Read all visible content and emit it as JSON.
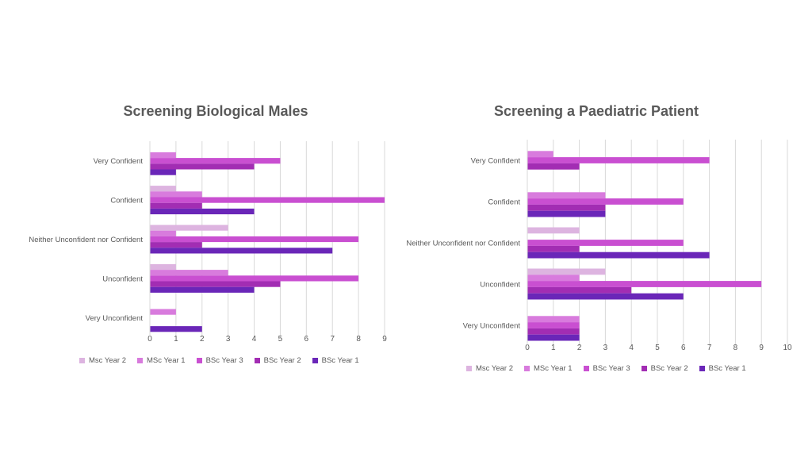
{
  "chart_data": [
    {
      "type": "bar",
      "orientation": "horizontal",
      "title": "Screening Biological Males",
      "categories": [
        "Very Confident",
        "Confident",
        "Neither Unconfident nor Confident",
        "Unconfident",
        "Very Unconfident"
      ],
      "xlim": [
        0,
        9
      ],
      "xticks": [
        0,
        1,
        2,
        3,
        4,
        5,
        6,
        7,
        8,
        9
      ],
      "grid": true,
      "legend_position": "bottom",
      "series": [
        {
          "name": "Msc Year 2",
          "color": "#DDB4E0",
          "values": [
            0,
            1,
            3,
            1,
            0
          ]
        },
        {
          "name": "MSc Year 1",
          "color": "#D87BDD",
          "values": [
            1,
            2,
            1,
            3,
            1
          ]
        },
        {
          "name": "BSc Year 3",
          "color": "#C94FD1",
          "values": [
            5,
            9,
            8,
            8,
            0
          ]
        },
        {
          "name": "BSc Year 2",
          "color": "#A22DB3",
          "values": [
            4,
            2,
            2,
            5,
            0
          ]
        },
        {
          "name": "BSc Year 1",
          "color": "#6A26B8",
          "values": [
            1,
            4,
            7,
            4,
            2
          ]
        }
      ]
    },
    {
      "type": "bar",
      "orientation": "horizontal",
      "title": "Screening a Paediatric Patient",
      "categories": [
        "Very Confident",
        "Confident",
        "Neither Unconfident nor Confident",
        "Unconfident",
        "Very Unconfident"
      ],
      "xlim": [
        0,
        10
      ],
      "xticks": [
        0,
        1,
        2,
        3,
        4,
        5,
        6,
        7,
        8,
        9,
        10
      ],
      "grid": true,
      "legend_position": "bottom",
      "series": [
        {
          "name": "Msc Year 2",
          "color": "#DDB4E0",
          "values": [
            0,
            0,
            2,
            3,
            0
          ]
        },
        {
          "name": "MSc Year 1",
          "color": "#D87BDD",
          "values": [
            1,
            3,
            0,
            2,
            2
          ]
        },
        {
          "name": "BSc Year 3",
          "color": "#C94FD1",
          "values": [
            7,
            6,
            6,
            9,
            2
          ]
        },
        {
          "name": "BSc Year 2",
          "color": "#A22DB3",
          "values": [
            2,
            3,
            2,
            4,
            2
          ]
        },
        {
          "name": "BSc Year 1",
          "color": "#6A26B8",
          "values": [
            0,
            3,
            7,
            6,
            2
          ]
        }
      ]
    }
  ]
}
